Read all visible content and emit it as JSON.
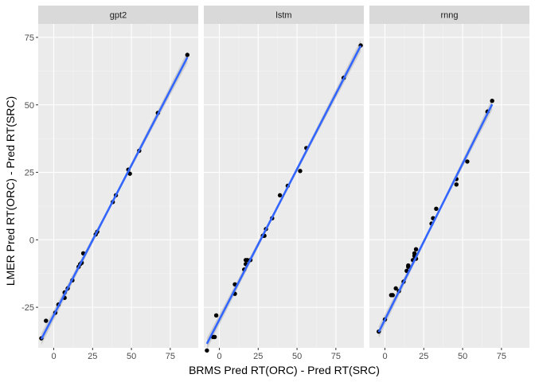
{
  "chart_data": {
    "type": "scatter",
    "xlabel": "BRMS Pred RT(ORC) - Pred RT(SRC)",
    "ylabel": "LMER Pred RT(ORC) - Pred RT(SRC)",
    "xlim": [
      -10,
      93
    ],
    "ylim": [
      -40,
      80
    ],
    "xticks": [
      0,
      25,
      50,
      75
    ],
    "yticks": [
      -25,
      0,
      25,
      50,
      75
    ],
    "grid": true,
    "smooth": "linear fit with confidence band",
    "colors": {
      "panel_bg": "#ebebeb",
      "strip_bg": "#d9d9d9",
      "grid_major": "#ffffff",
      "grid_minor": "#f4f4f4",
      "point": "#000000",
      "line": "#3366ff",
      "band": "#bdbdbd"
    },
    "panels": [
      {
        "label": "gpt2",
        "line": {
          "x0": -8,
          "y0": -36.8,
          "x1": 86,
          "y1": 67.6
        },
        "points": [
          {
            "x": -8,
            "y": -36.5
          },
          {
            "x": -5,
            "y": -30
          },
          {
            "x": 1,
            "y": -27
          },
          {
            "x": 3,
            "y": -24
          },
          {
            "x": 7,
            "y": -21.5
          },
          {
            "x": 7,
            "y": -19.5
          },
          {
            "x": 9,
            "y": -18
          },
          {
            "x": 12,
            "y": -15
          },
          {
            "x": 16,
            "y": -10
          },
          {
            "x": 17,
            "y": -9
          },
          {
            "x": 18,
            "y": -8.5
          },
          {
            "x": 19,
            "y": -5
          },
          {
            "x": 27,
            "y": 2
          },
          {
            "x": 28,
            "y": 3
          },
          {
            "x": 38,
            "y": 14
          },
          {
            "x": 40,
            "y": 16.5
          },
          {
            "x": 48,
            "y": 26
          },
          {
            "x": 49,
            "y": 24.5
          },
          {
            "x": 55,
            "y": 33
          },
          {
            "x": 67,
            "y": 47
          },
          {
            "x": 86,
            "y": 68.5
          }
        ]
      },
      {
        "label": "lstm",
        "line": {
          "x0": -8,
          "y0": -38.5,
          "x1": 91,
          "y1": 71.9
        },
        "points": [
          {
            "x": -8,
            "y": -41
          },
          {
            "x": -4,
            "y": -36
          },
          {
            "x": -3,
            "y": -36
          },
          {
            "x": -2,
            "y": -28
          },
          {
            "x": 10,
            "y": -20
          },
          {
            "x": 10,
            "y": -16.5
          },
          {
            "x": 16,
            "y": -11
          },
          {
            "x": 17,
            "y": -9
          },
          {
            "x": 17,
            "y": -7.5
          },
          {
            "x": 18,
            "y": -7.5
          },
          {
            "x": 20,
            "y": -7.5
          },
          {
            "x": 28,
            "y": 1.5
          },
          {
            "x": 29,
            "y": 1.5
          },
          {
            "x": 30,
            "y": 4
          },
          {
            "x": 34,
            "y": 8
          },
          {
            "x": 39,
            "y": 16.5
          },
          {
            "x": 44,
            "y": 20
          },
          {
            "x": 52,
            "y": 25.5
          },
          {
            "x": 56,
            "y": 34
          },
          {
            "x": 80,
            "y": 60
          },
          {
            "x": 91,
            "y": 72
          }
        ]
      },
      {
        "label": "rnng",
        "line": {
          "x0": -4,
          "y0": -34.2,
          "x1": 69,
          "y1": 50.2
        },
        "points": [
          {
            "x": -4,
            "y": -34
          },
          {
            "x": 0,
            "y": -29.5
          },
          {
            "x": 4,
            "y": -20.5
          },
          {
            "x": 5,
            "y": -20.5
          },
          {
            "x": 7,
            "y": -18
          },
          {
            "x": 9,
            "y": -19
          },
          {
            "x": 12,
            "y": -15.5
          },
          {
            "x": 14,
            "y": -11.5
          },
          {
            "x": 15,
            "y": -10
          },
          {
            "x": 15,
            "y": -9.5
          },
          {
            "x": 18,
            "y": -7.5
          },
          {
            "x": 19,
            "y": -6
          },
          {
            "x": 19,
            "y": -5
          },
          {
            "x": 20,
            "y": -7
          },
          {
            "x": 20,
            "y": -3.5
          },
          {
            "x": 30,
            "y": 6
          },
          {
            "x": 31,
            "y": 8
          },
          {
            "x": 33,
            "y": 11.5
          },
          {
            "x": 46,
            "y": 20.5
          },
          {
            "x": 46,
            "y": 22.5
          },
          {
            "x": 53,
            "y": 29
          },
          {
            "x": 66,
            "y": 47.5
          },
          {
            "x": 69,
            "y": 51.5
          }
        ]
      }
    ]
  }
}
